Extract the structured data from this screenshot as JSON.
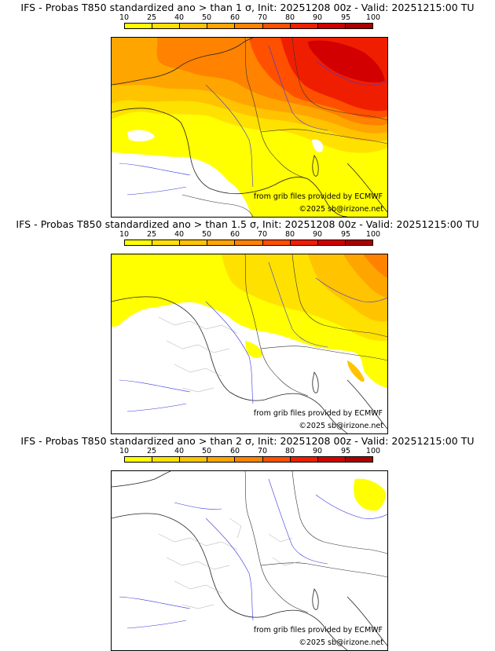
{
  "colorbar": {
    "ticks": [
      "10",
      "25",
      "40",
      "50",
      "60",
      "70",
      "80",
      "90",
      "95",
      "100"
    ],
    "colors": [
      "#ffff00",
      "#ffe100",
      "#ffc300",
      "#ffa500",
      "#ff8200",
      "#ff5000",
      "#f01e00",
      "#d20000",
      "#aa0000",
      "#7d0000"
    ]
  },
  "panels": [
    {
      "title": "IFS - Probas T850  standardized ano > than 1 σ, Init: 20251208 00z - Valid: 20251215:00 TU",
      "source": "from grib files provided by ECMWF",
      "copyright": "©2025 sb@irizone.net"
    },
    {
      "title": "IFS - Probas T850  standardized ano > than 1.5 σ, Init: 20251208 00z - Valid: 20251215:00 TU",
      "source": "from grib files provided by ECMWF",
      "copyright": "©2025 sb@irizone.net"
    },
    {
      "title": "IFS - Probas T850  standardized ano > than 2 σ, Init: 20251208 00z - Valid: 20251215:00 TU",
      "source": "from grib files provided by ECMWF",
      "copyright": "©2025 sb@irizone.net"
    }
  ]
}
